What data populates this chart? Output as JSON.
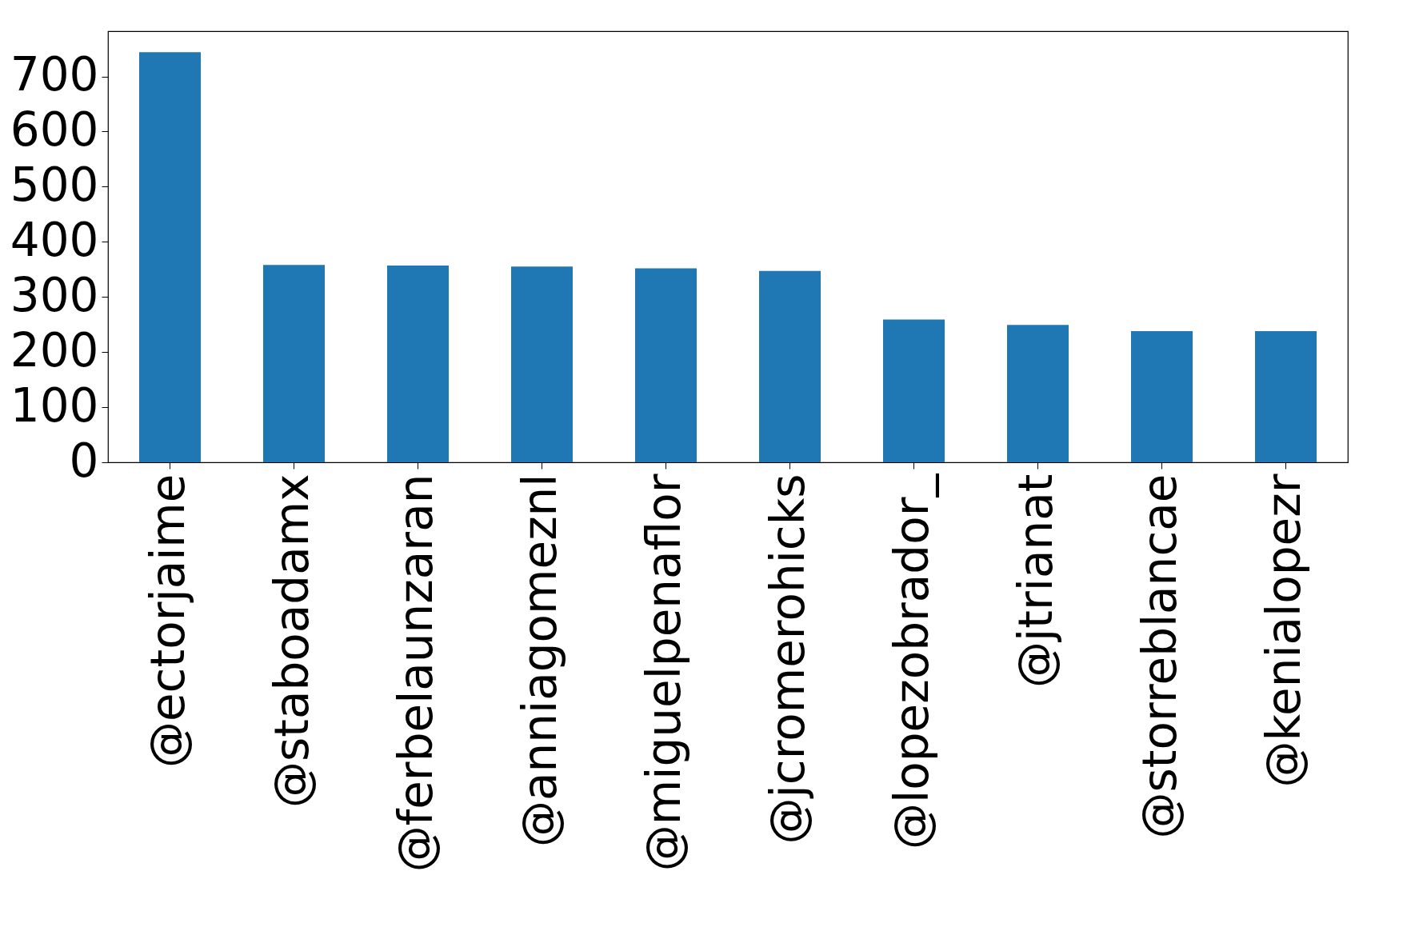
{
  "chart_data": {
    "type": "bar",
    "categories": [
      "@ectorjaime",
      "@staboadamx",
      "@ferbelaunzaran",
      "@anniagomeznl",
      "@miguelpenaflor",
      "@jcromerohicks",
      "@lopezobrador_",
      "@jtrianat",
      "@storreblancae",
      "@kenialopezr"
    ],
    "values": [
      744,
      358,
      357,
      355,
      352,
      347,
      259,
      249,
      238,
      238
    ],
    "color": "#1f77b4",
    "ylim": [
      0,
      782
    ],
    "yticks": [
      0,
      100,
      200,
      300,
      400,
      500,
      600,
      700
    ],
    "grid": false
  }
}
